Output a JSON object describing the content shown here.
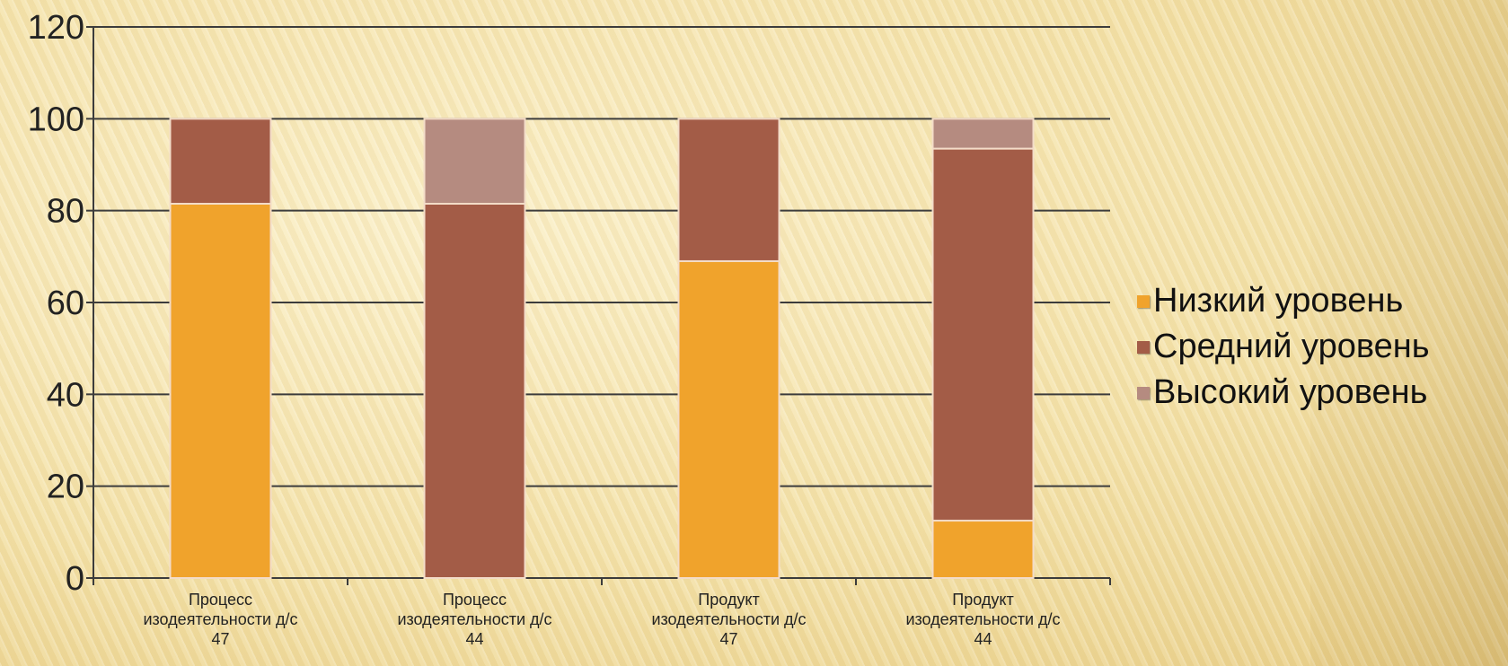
{
  "chart_data": {
    "type": "bar",
    "stacked": true,
    "title": "",
    "xlabel": "",
    "ylabel": "",
    "ylim": [
      0,
      120
    ],
    "yticks": [
      0,
      20,
      40,
      60,
      80,
      100,
      120
    ],
    "grid": true,
    "legend_position": "right",
    "categories": [
      [
        "Процесс",
        "изодеятельности д/с",
        "47"
      ],
      [
        "Процесс",
        "изодеятельности д/с",
        "44"
      ],
      [
        "Продукт",
        "изодеятельности д/с",
        "47"
      ],
      [
        "Продукт",
        "изодеятельности д/с",
        "44"
      ]
    ],
    "series": [
      {
        "name": "Низкий уровень",
        "color": "#f0a32c",
        "values": [
          81.5,
          0,
          69,
          12.5
        ]
      },
      {
        "name": "Средний уровень",
        "color": "#a35c47",
        "values": [
          18.5,
          81.5,
          31,
          81
        ]
      },
      {
        "name": "Высокий уровень",
        "color": "#b58b80",
        "values": [
          0,
          18.5,
          0,
          6.5
        ]
      }
    ]
  }
}
